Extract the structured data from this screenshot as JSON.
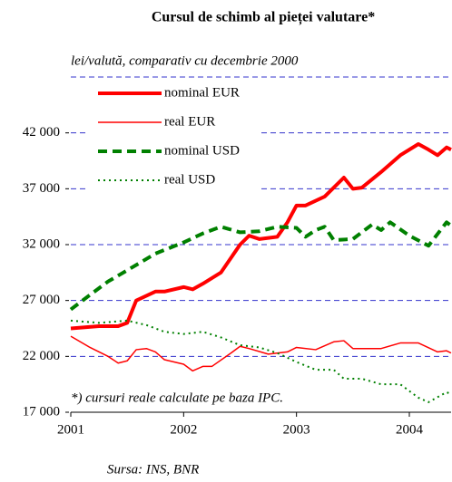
{
  "chart_data": {
    "type": "line",
    "title": "Cursul de schimb al pieței valutare*",
    "subtitle": "lei/valută, comparativ cu decembrie 2000",
    "annotation": "*) cursuri reale calculate pe baza IPC.",
    "source": "Sursa: INS, BNR",
    "xlim": [
      2001,
      2004.37
    ],
    "xticks": [
      2001,
      2002,
      2003,
      2004
    ],
    "ylim": [
      17000,
      47000
    ],
    "yticks": [
      {
        "value": 17000,
        "label": "17 000"
      },
      {
        "value": 22000,
        "label": "22 000"
      },
      {
        "value": 27000,
        "label": "27 000"
      },
      {
        "value": 32000,
        "label": "32 000"
      },
      {
        "value": 37000,
        "label": "37 000"
      },
      {
        "value": 42000,
        "label": "42 000"
      }
    ],
    "grid": true,
    "legend": "upper left",
    "series": [
      {
        "name": "nominal EUR",
        "color": "#ff0000",
        "width": 4,
        "dash": "none",
        "x": [
          2001,
          2001.25,
          2001.42,
          2001.5,
          2001.58,
          2001.75,
          2001.83,
          2002.0,
          2002.08,
          2002.17,
          2002.33,
          2002.5,
          2002.58,
          2002.67,
          2002.83,
          2002.92,
          2003.0,
          2003.08,
          2003.25,
          2003.42,
          2003.5,
          2003.58,
          2003.75,
          2003.92,
          2004.08,
          2004.17,
          2004.25,
          2004.33,
          2004.37
        ],
        "values": [
          24500,
          24700,
          24700,
          25000,
          27000,
          27800,
          27800,
          28200,
          28000,
          28500,
          29500,
          32000,
          32800,
          32500,
          32700,
          34000,
          35500,
          35500,
          36300,
          38000,
          37000,
          37100,
          38500,
          40000,
          41000,
          40500,
          40000,
          40700,
          40500
        ]
      },
      {
        "name": "real EUR",
        "color": "#ff0000",
        "width": 1.5,
        "dash": "none",
        "x": [
          2001,
          2001.17,
          2001.33,
          2001.42,
          2001.5,
          2001.58,
          2001.67,
          2001.75,
          2001.83,
          2002.0,
          2002.08,
          2002.17,
          2002.25,
          2002.42,
          2002.5,
          2002.58,
          2002.75,
          2002.92,
          2003.0,
          2003.17,
          2003.33,
          2003.42,
          2003.5,
          2003.75,
          2003.92,
          2004.08,
          2004.25,
          2004.33,
          2004.37
        ],
        "values": [
          23800,
          22800,
          22000,
          21400,
          21600,
          22600,
          22700,
          22400,
          21700,
          21300,
          20700,
          21100,
          21100,
          22300,
          22900,
          22700,
          22200,
          22400,
          22800,
          22600,
          23300,
          23400,
          22700,
          22700,
          23200,
          23200,
          22400,
          22500,
          22300
        ]
      },
      {
        "name": "nominal USD",
        "color": "#008000",
        "width": 4,
        "dash": "10 6",
        "x": [
          2001,
          2001.17,
          2001.33,
          2001.5,
          2001.75,
          2002.0,
          2002.17,
          2002.33,
          2002.5,
          2002.67,
          2002.83,
          2003.0,
          2003.08,
          2003.17,
          2003.25,
          2003.33,
          2003.5,
          2003.67,
          2003.75,
          2003.83,
          2004.0,
          2004.17,
          2004.33,
          2004.37
        ],
        "values": [
          26200,
          27500,
          28700,
          29700,
          31200,
          32200,
          33000,
          33600,
          33100,
          33200,
          33600,
          33500,
          32700,
          33300,
          33600,
          32400,
          32500,
          33800,
          33300,
          34000,
          32800,
          31900,
          34000,
          33700
        ]
      },
      {
        "name": "real USD",
        "color": "#008000",
        "width": 2,
        "dash": "2 4",
        "x": [
          2001,
          2001.25,
          2001.5,
          2001.67,
          2001.83,
          2002.0,
          2002.17,
          2002.33,
          2002.5,
          2002.67,
          2002.83,
          2003.0,
          2003.17,
          2003.33,
          2003.42,
          2003.58,
          2003.75,
          2003.92,
          2004.08,
          2004.17,
          2004.33,
          2004.37
        ],
        "values": [
          25200,
          25000,
          25200,
          24800,
          24200,
          24000,
          24200,
          23700,
          23000,
          22800,
          22300,
          21500,
          20800,
          20800,
          20000,
          20000,
          19500,
          19500,
          18300,
          17900,
          18800,
          18600
        ]
      }
    ]
  }
}
